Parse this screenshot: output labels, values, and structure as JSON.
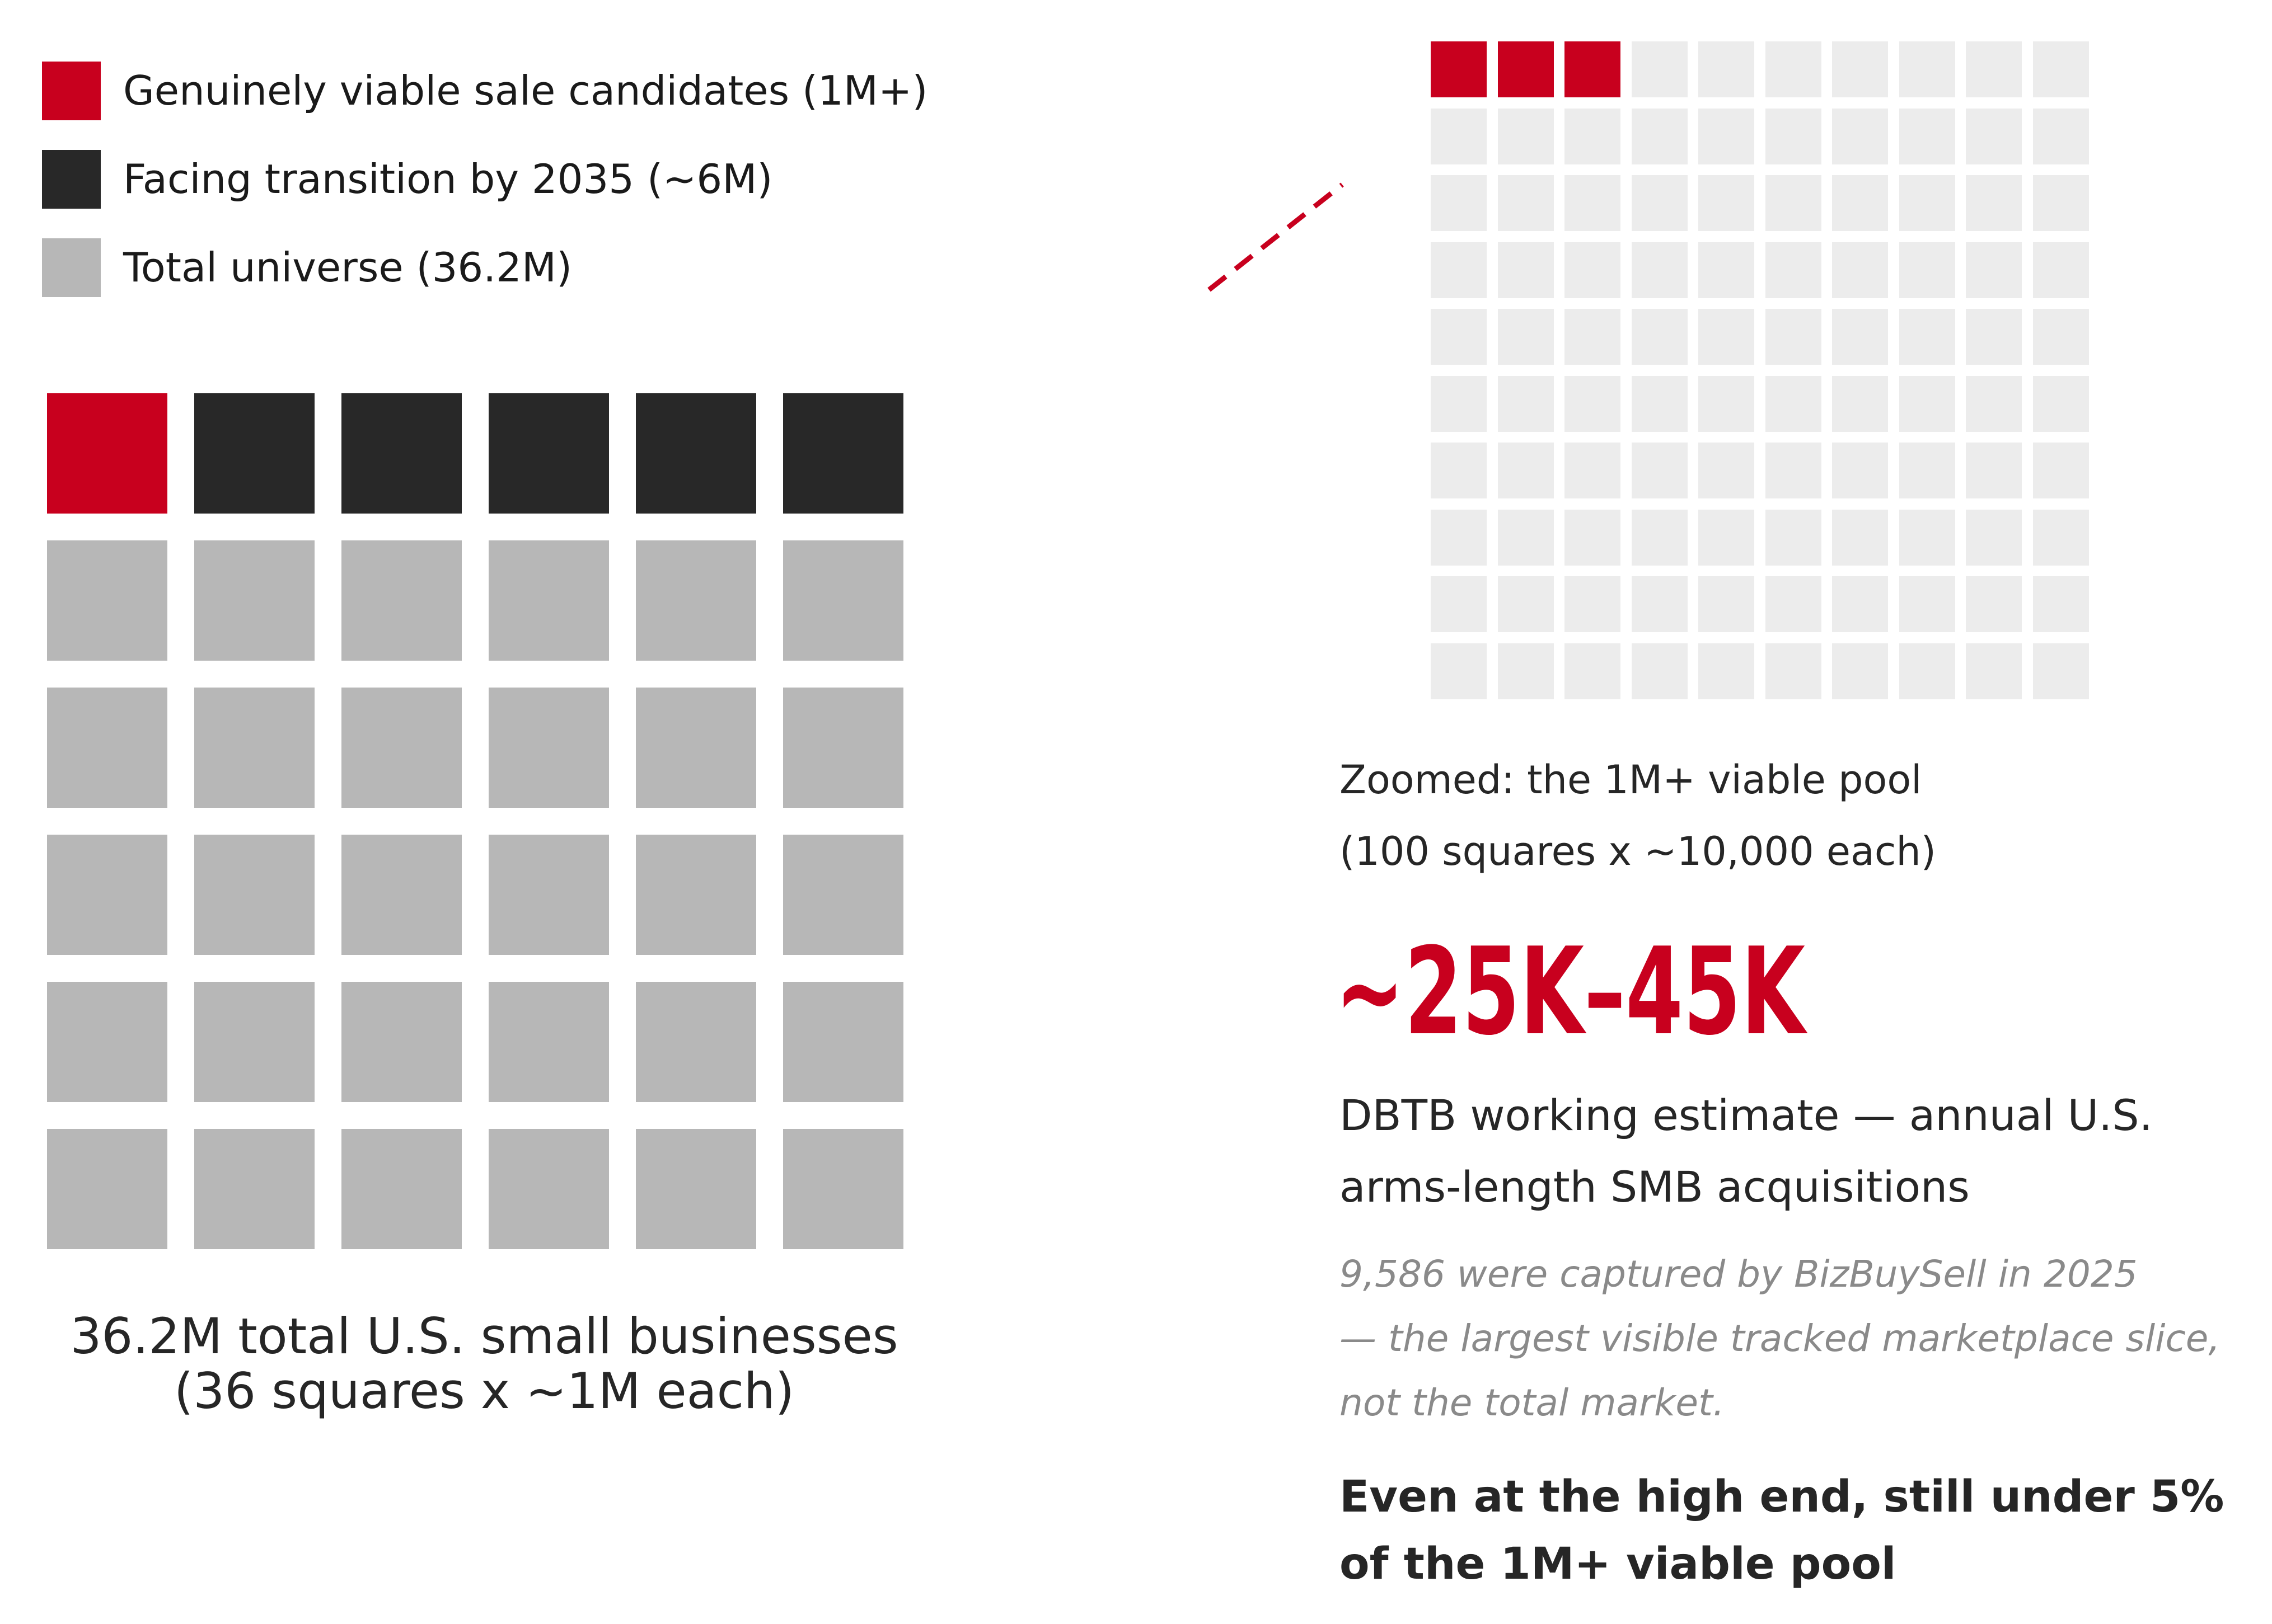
{
  "colors": {
    "accent": "#c8001e",
    "dark": "#282828",
    "universe": "#b7b7b7",
    "zoom_empty": "#ececec",
    "text": "#262626",
    "note": "#8a8a8a"
  },
  "legend": [
    {
      "label": "Genuinely viable sale candidates (1M+)",
      "color": "#c8001e"
    },
    {
      "label": "Facing transition by 2035 (~6M)",
      "color": "#282828"
    },
    {
      "label": "Total universe (36.2M)",
      "color": "#b7b7b7"
    }
  ],
  "big_caption": {
    "line1": "36.2M total U.S. small businesses",
    "line2": "(36 squares x ~1M each)"
  },
  "zoom_caption": {
    "line1": "Zoomed: the 1M+ viable pool",
    "line2": "(100 squares x ~10,000 each)"
  },
  "estimate": {
    "value": "~25K–45K",
    "desc_line1": "DBTB working estimate — annual U.S.",
    "desc_line2": "arms-length SMB acquisitions"
  },
  "note": {
    "line1": "9,586 were captured by BizBuySell in 2025",
    "line2": "— the largest visible tracked marketplace slice,",
    "line3": "not the total market."
  },
  "conclusion": {
    "line1": "Even at the high end, still under 5%",
    "line2": "of the 1M+ viable pool"
  },
  "chart_data": [
    {
      "type": "waffle",
      "total_squares": 36,
      "columns": 6,
      "unit": "~1M each",
      "series": [
        {
          "name": "Genuinely viable sale candidates (1M+)",
          "squares": 1,
          "color": "#c8001e"
        },
        {
          "name": "Facing transition by 2035 (~6M)",
          "squares": 5,
          "color": "#282828"
        },
        {
          "name": "Total universe (36.2M)",
          "squares": 30,
          "color": "#b7b7b7"
        }
      ]
    },
    {
      "type": "waffle",
      "total_squares": 100,
      "columns": 10,
      "unit": "~10,000 each",
      "series": [
        {
          "squares": 3,
          "color": "#c8001e"
        },
        {
          "squares": 97,
          "color": "#ececec"
        }
      ]
    }
  ]
}
